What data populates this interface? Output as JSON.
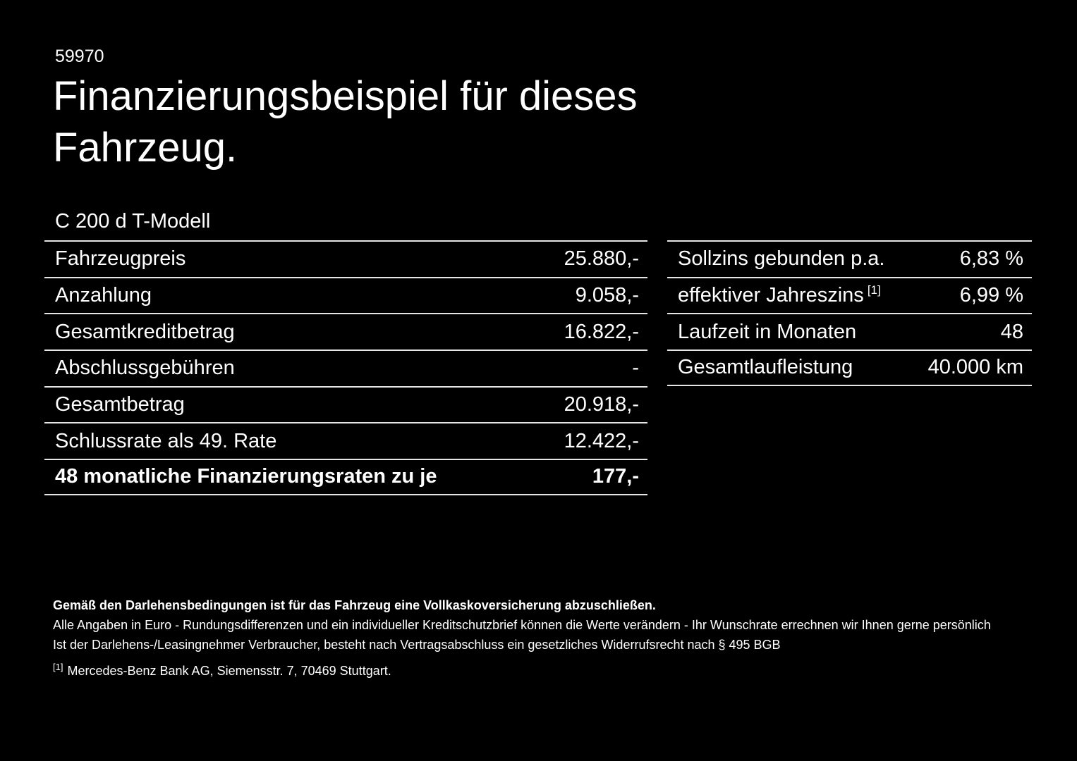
{
  "page": {
    "offer_number": "59970",
    "title_line1": "Finanzierungsbeispiel für dieses",
    "title_line2": "Fahrzeug.",
    "model": "C 200 d T-Modell",
    "background_color": "#000000",
    "text_color": "#ffffff",
    "divider_color": "#e6e6e6"
  },
  "left_table": {
    "rows": [
      {
        "label": "Fahrzeugpreis",
        "value": "25.880,-"
      },
      {
        "label": "Anzahlung",
        "value": "9.058,-"
      },
      {
        "label": "Gesamtkreditbetrag",
        "value": "16.822,-"
      },
      {
        "label": "Abschlussgebühren",
        "value": "-"
      },
      {
        "label": "Gesamtbetrag",
        "value": "20.918,-"
      },
      {
        "label": "Schlussrate als 49. Rate",
        "value": "12.422,-"
      },
      {
        "label": "48 monatliche Finanzierungsraten zu je",
        "value": "177,-"
      }
    ]
  },
  "right_table": {
    "rows": [
      {
        "label": "Sollzins gebunden p.a.",
        "value": "6,83 %"
      },
      {
        "label": "effektiver Jahreszins",
        "sup": "[1]",
        "value": "6,99 %"
      },
      {
        "label": "Laufzeit in Monaten",
        "value": "48"
      },
      {
        "label": "Gesamtlaufleistung",
        "value": "40.000 km"
      }
    ]
  },
  "footnotes": {
    "insurance_note": "Gemäß den Darlehensbedingungen ist für das Fahrzeug eine Vollkaskoversicherung abzuschließen.",
    "note_euro": "Alle Angaben in Euro - Rundungsdifferenzen und ein individueller Kreditschutzbrief können die Werte verändern - Ihr Wunschrate errechnen wir Ihnen gerne persönlich",
    "note_withdrawal": "Ist der Darlehens-/Leasingnehmer Verbraucher, besteht nach Vertragsabschluss ein gesetzliches Widerrufsrecht nach § 495 BGB",
    "reference_marker": "[1]",
    "reference_text": "Mercedes-Benz Bank AG, Siemensstr. 7, 70469 Stuttgart."
  }
}
